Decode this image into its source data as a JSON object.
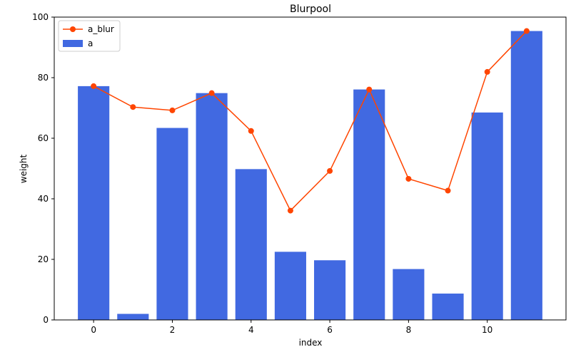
{
  "chart_data": {
    "type": "bar",
    "title": "Blurpool",
    "xlabel": "index",
    "ylabel": "weight",
    "x": [
      0,
      1,
      2,
      3,
      4,
      5,
      6,
      7,
      8,
      9,
      10,
      11
    ],
    "xlim": [
      -1,
      12
    ],
    "ylim": [
      0,
      100
    ],
    "xticks": [
      0,
      2,
      4,
      6,
      8,
      10
    ],
    "yticks": [
      0,
      20,
      40,
      60,
      80,
      100
    ],
    "grid": false,
    "legend_position": "top-left",
    "series": [
      {
        "name": "a_blur",
        "kind": "line",
        "marker": "circle",
        "color": "#ff4500",
        "values": [
          77.2,
          70.3,
          69.2,
          74.9,
          62.4,
          36.1,
          49.2,
          76.1,
          46.6,
          42.7,
          81.9,
          95.4
        ]
      },
      {
        "name": "a",
        "kind": "bar",
        "color": "#4169e1",
        "values": [
          77.2,
          2.0,
          63.4,
          74.9,
          49.8,
          22.5,
          19.7,
          76.1,
          16.8,
          8.7,
          68.5,
          95.4
        ]
      }
    ]
  }
}
